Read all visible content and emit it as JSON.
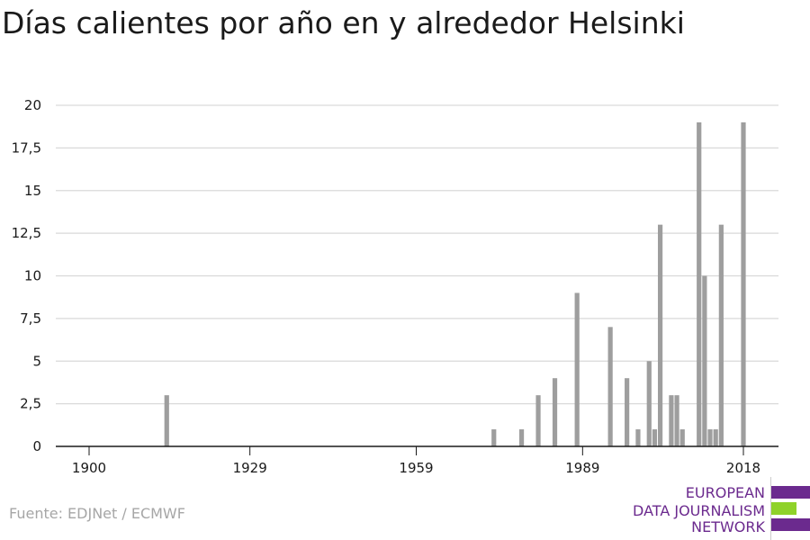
{
  "title": "Días calientes por año en y alrededor Helsinki",
  "source": "Fuente: EDJNet / ECMWF",
  "logo": {
    "lines": [
      "EUROPEAN",
      "DATA JOURNALISM",
      "NETWORK"
    ],
    "text_color": "#6b2a8e",
    "purple": "#6b2a8e",
    "green": "#8fd22a"
  },
  "colors": {
    "bar": "#9e9e9e",
    "grid": "#d9d9d9",
    "axis": "#1a1a1a",
    "tick_text": "#1a1a1a"
  },
  "chart_data": {
    "type": "bar",
    "title": "Días calientes por año en y alrededor Helsinki",
    "xlabel": "",
    "ylabel": "",
    "xlim": [
      1894,
      2024
    ],
    "ylim": [
      0,
      20
    ],
    "x_ticks": [
      1900,
      1929,
      1959,
      1989,
      2018
    ],
    "x_tick_labels": [
      "1900",
      "1929",
      "1959",
      "1989",
      "2018"
    ],
    "y_ticks": [
      0,
      2.5,
      5,
      7.5,
      10,
      12.5,
      15,
      17.5,
      20
    ],
    "y_tick_labels": [
      "0",
      "2,5",
      "5",
      "7,5",
      "10",
      "12,5",
      "15",
      "17,5",
      "20"
    ],
    "grid": true,
    "series": [
      {
        "values": [
          {
            "year": 1914,
            "value": 3
          },
          {
            "year": 1973,
            "value": 1
          },
          {
            "year": 1978,
            "value": 1
          },
          {
            "year": 1981,
            "value": 3
          },
          {
            "year": 1984,
            "value": 4
          },
          {
            "year": 1988,
            "value": 9
          },
          {
            "year": 1994,
            "value": 7
          },
          {
            "year": 1997,
            "value": 4
          },
          {
            "year": 1999,
            "value": 1
          },
          {
            "year": 2001,
            "value": 5
          },
          {
            "year": 2002,
            "value": 1
          },
          {
            "year": 2003,
            "value": 13
          },
          {
            "year": 2005,
            "value": 3
          },
          {
            "year": 2006,
            "value": 3
          },
          {
            "year": 2007,
            "value": 1
          },
          {
            "year": 2010,
            "value": 19
          },
          {
            "year": 2011,
            "value": 10
          },
          {
            "year": 2012,
            "value": 1
          },
          {
            "year": 2013,
            "value": 1
          },
          {
            "year": 2014,
            "value": 13
          },
          {
            "year": 2018,
            "value": 19
          }
        ]
      }
    ]
  }
}
